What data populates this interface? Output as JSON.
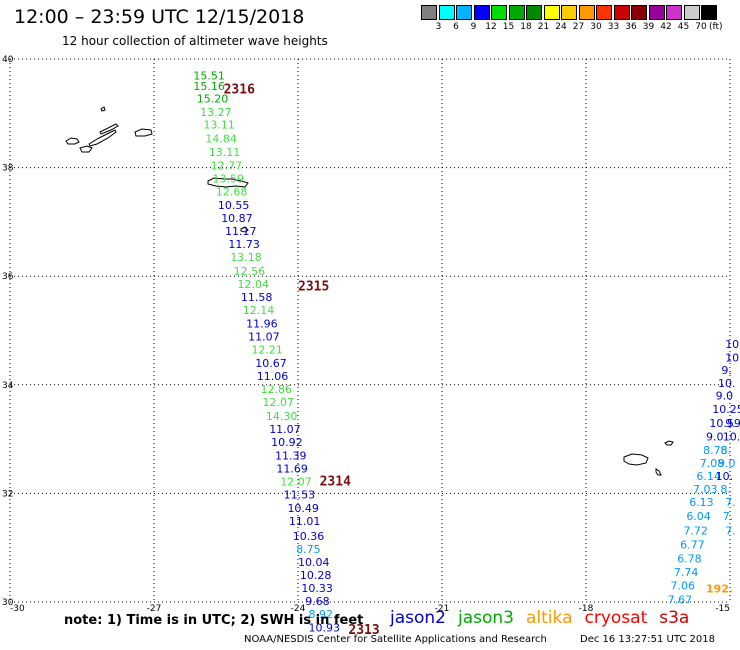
{
  "header": {
    "title": "12:00 – 23:59 UTC 12/15/2018",
    "subtitle": "12 hour collection of altimeter wave heights"
  },
  "colorbar": {
    "unit": "(ft)",
    "colors": [
      "#808080",
      "#00ffff",
      "#00b4ff",
      "#0000ff",
      "#00dd00",
      "#00aa00",
      "#008800",
      "#ffff00",
      "#ffcc00",
      "#ff9900",
      "#ff3300",
      "#cc0000",
      "#880000",
      "#990099",
      "#cc33cc",
      "#cccccc",
      "#000000"
    ],
    "labels": [
      "3",
      "6",
      "9",
      "12",
      "15",
      "18",
      "21",
      "24",
      "27",
      "30",
      "33",
      "36",
      "39",
      "42",
      "45",
      "70"
    ]
  },
  "axes": {
    "lat_labels": [
      "40",
      "38",
      "36",
      "34",
      "32",
      "30"
    ],
    "lon_labels": [
      "-30",
      "-27",
      "-24",
      "-21",
      "-18",
      "-15"
    ]
  },
  "chart_data": {
    "type": "scatter",
    "lat_range": [
      30,
      40
    ],
    "lon_range": [
      -30,
      -15
    ],
    "units": "ft",
    "main_track": [
      {
        "lat": 39.7,
        "lon": -26.18,
        "v": "15.51",
        "sat": "jason3"
      },
      {
        "lat": 39.5,
        "lon": -26.18,
        "v": "15.16",
        "sat": "jason3"
      },
      {
        "lat": 39.27,
        "lon": -26.11,
        "v": "15.20",
        "sat": "jason3"
      },
      {
        "lat": 39.02,
        "lon": -26.04,
        "v": "13.27",
        "sat": "jason3l"
      },
      {
        "lat": 38.79,
        "lon": -25.97,
        "v": "13.11",
        "sat": "jason3l"
      },
      {
        "lat": 38.54,
        "lon": -25.93,
        "v": "14.84",
        "sat": "jason3l"
      },
      {
        "lat": 38.29,
        "lon": -25.86,
        "v": "13.11",
        "sat": "jason3l"
      },
      {
        "lat": 38.04,
        "lon": -25.82,
        "v": "12.77",
        "sat": "jason3l"
      },
      {
        "lat": 37.8,
        "lon": -25.78,
        "v": "13.59",
        "sat": "jason3l"
      },
      {
        "lat": 37.56,
        "lon": -25.71,
        "v": "12.68",
        "sat": "jason3l"
      },
      {
        "lat": 37.31,
        "lon": -25.67,
        "v": "10.55",
        "sat": "jason2"
      },
      {
        "lat": 37.07,
        "lon": -25.6,
        "v": "10.87",
        "sat": "jason2"
      },
      {
        "lat": 36.83,
        "lon": -25.52,
        "v": "11.17",
        "sat": "jason2"
      },
      {
        "lat": 36.59,
        "lon": -25.45,
        "v": "11.73",
        "sat": "jason2"
      },
      {
        "lat": 36.35,
        "lon": -25.41,
        "v": "13.18",
        "sat": "jason3l"
      },
      {
        "lat": 36.1,
        "lon": -25.34,
        "v": "12.56",
        "sat": "jason3l"
      },
      {
        "lat": 35.86,
        "lon": -25.26,
        "v": "12.04",
        "sat": "jason3l"
      },
      {
        "lat": 35.62,
        "lon": -25.19,
        "v": "11.58",
        "sat": "jason2"
      },
      {
        "lat": 35.38,
        "lon": -25.15,
        "v": "12.14",
        "sat": "jason3l"
      },
      {
        "lat": 35.13,
        "lon": -25.08,
        "v": "11.96",
        "sat": "jason2"
      },
      {
        "lat": 34.89,
        "lon": -25.04,
        "v": "11.07",
        "sat": "jason2"
      },
      {
        "lat": 34.65,
        "lon": -24.97,
        "v": "12.21",
        "sat": "jason3l"
      },
      {
        "lat": 34.4,
        "lon": -24.89,
        "v": "10.67",
        "sat": "jason2"
      },
      {
        "lat": 34.16,
        "lon": -24.86,
        "v": "11.06",
        "sat": "jason2"
      },
      {
        "lat": 33.92,
        "lon": -24.78,
        "v": "12.86",
        "sat": "jason3l"
      },
      {
        "lat": 33.68,
        "lon": -24.74,
        "v": "12.07",
        "sat": "jason3l"
      },
      {
        "lat": 33.43,
        "lon": -24.67,
        "v": "14.30",
        "sat": "jason3l"
      },
      {
        "lat": 33.19,
        "lon": -24.6,
        "v": "11.07",
        "sat": "jason2"
      },
      {
        "lat": 32.95,
        "lon": -24.56,
        "v": "10.92",
        "sat": "jason2"
      },
      {
        "lat": 32.7,
        "lon": -24.48,
        "v": "11.39",
        "sat": "jason2"
      },
      {
        "lat": 32.46,
        "lon": -24.45,
        "v": "11.69",
        "sat": "jason2"
      },
      {
        "lat": 32.22,
        "lon": -24.37,
        "v": "12.07",
        "sat": "jason3l"
      },
      {
        "lat": 31.98,
        "lon": -24.3,
        "v": "11.53",
        "sat": "jason2"
      },
      {
        "lat": 31.73,
        "lon": -24.22,
        "v": "10.49",
        "sat": "jason2"
      },
      {
        "lat": 31.49,
        "lon": -24.19,
        "v": "11.01",
        "sat": "jason2"
      },
      {
        "lat": 31.22,
        "lon": -24.11,
        "v": "10.36",
        "sat": "jason2"
      },
      {
        "lat": 30.98,
        "lon": -24.04,
        "v": "8.75",
        "sat": "jason2c"
      },
      {
        "lat": 30.74,
        "lon": -24.0,
        "v": "10.04",
        "sat": "jason2"
      },
      {
        "lat": 30.5,
        "lon": -23.96,
        "v": "10.28",
        "sat": "jason2"
      },
      {
        "lat": 30.26,
        "lon": -23.93,
        "v": "10.33",
        "sat": "jason2"
      },
      {
        "lat": 30.02,
        "lon": -23.85,
        "v": "9.68",
        "sat": "jason2"
      },
      {
        "lat": 29.78,
        "lon": -23.78,
        "v": "8.92",
        "sat": "jason2c"
      },
      {
        "lat": 29.53,
        "lon": -23.78,
        "v": "10.93",
        "sat": "jason2"
      }
    ],
    "east_track": [
      {
        "lat": 34.75,
        "lon": -15.1,
        "v": "10",
        "sat": "jason2"
      },
      {
        "lat": 34.5,
        "lon": -15.1,
        "v": "10",
        "sat": "jason2"
      },
      {
        "lat": 34.27,
        "lon": -15.18,
        "v": "9.",
        "sat": "jason2"
      },
      {
        "lat": 34.03,
        "lon": -15.25,
        "v": "10.",
        "sat": "jason2"
      },
      {
        "lat": 33.8,
        "lon": -15.3,
        "v": "9.0",
        "sat": "jason2"
      },
      {
        "lat": 33.55,
        "lon": -15.37,
        "v": "10.25",
        "sat": "jason2"
      },
      {
        "lat": 33.3,
        "lon": -15.43,
        "v": "10.59",
        "sat": "jason2"
      },
      {
        "lat": 33.05,
        "lon": -15.5,
        "v": "9.0",
        "sat": "jason2"
      },
      {
        "lat": 32.8,
        "lon": -15.56,
        "v": "8.78",
        "sat": "jason2c"
      },
      {
        "lat": 32.56,
        "lon": -15.63,
        "v": "7.08",
        "sat": "jason2c"
      },
      {
        "lat": 32.32,
        "lon": -15.7,
        "v": "6.14",
        "sat": "jason2c"
      },
      {
        "lat": 32.08,
        "lon": -15.77,
        "v": "7.03",
        "sat": "jason2c"
      },
      {
        "lat": 31.84,
        "lon": -15.85,
        "v": "6.13",
        "sat": "jason2c"
      },
      {
        "lat": 31.58,
        "lon": -15.91,
        "v": "6.04",
        "sat": "jason2c"
      },
      {
        "lat": 31.32,
        "lon": -15.97,
        "v": "7.72",
        "sat": "jason2c"
      },
      {
        "lat": 31.06,
        "lon": -16.04,
        "v": "6.77",
        "sat": "jason2c"
      },
      {
        "lat": 30.8,
        "lon": -16.1,
        "v": "6.78",
        "sat": "jason2c"
      },
      {
        "lat": 30.55,
        "lon": -16.17,
        "v": "7.74",
        "sat": "jason2c"
      },
      {
        "lat": 30.3,
        "lon": -16.24,
        "v": "7.06",
        "sat": "jason2c"
      },
      {
        "lat": 30.05,
        "lon": -16.3,
        "v": "7.67",
        "sat": "jason2c"
      }
    ],
    "east_track_2": [
      {
        "lat": 33.3,
        "lon": -15.1,
        "v": "9.",
        "sat": "jason2"
      },
      {
        "lat": 33.05,
        "lon": -15.15,
        "v": "10.",
        "sat": "jason2"
      },
      {
        "lat": 32.8,
        "lon": -15.2,
        "v": "8.",
        "sat": "jason2c"
      },
      {
        "lat": 32.56,
        "lon": -15.25,
        "v": "9.0",
        "sat": "jason2c"
      },
      {
        "lat": 32.32,
        "lon": -15.3,
        "v": "10.",
        "sat": "jason2"
      },
      {
        "lat": 32.08,
        "lon": -15.2,
        "v": "8.",
        "sat": "jason2c"
      },
      {
        "lat": 31.84,
        "lon": -15.1,
        "v": "7.",
        "sat": "jason2c"
      },
      {
        "lat": 31.58,
        "lon": -15.15,
        "v": "7.",
        "sat": "jason2c"
      },
      {
        "lat": 31.32,
        "lon": -15.1,
        "v": "7.",
        "sat": "jason2c"
      }
    ],
    "extra_values": [
      {
        "lat": 30.25,
        "lon": -15.5,
        "v": "192.",
        "sat": "altika"
      }
    ],
    "time_labels": [
      {
        "lat": 39.46,
        "lon": -25.55,
        "v": "2316"
      },
      {
        "lat": 35.83,
        "lon": -24.0,
        "v": "2315"
      },
      {
        "lat": 32.24,
        "lon": -23.55,
        "v": "2314"
      },
      {
        "lat": 29.5,
        "lon": -22.95,
        "v": "2313"
      }
    ]
  },
  "note": "note: 1) Time is in UTC; 2) SWH is in feet",
  "satellites": [
    {
      "name": "jason2",
      "color": "#0000cc"
    },
    {
      "name": "jason3",
      "color": "#00aa00"
    },
    {
      "name": "altika",
      "color": "#ff9900"
    },
    {
      "name": "cryosat",
      "color": "#ff0000"
    },
    {
      "name": "s3a",
      "color": "#cc0000"
    }
  ],
  "credit": "NOAA/NESDIS Center for Satellite Applications and Research",
  "timestamp": "Dec 16 13:27:51 UTC 2018"
}
